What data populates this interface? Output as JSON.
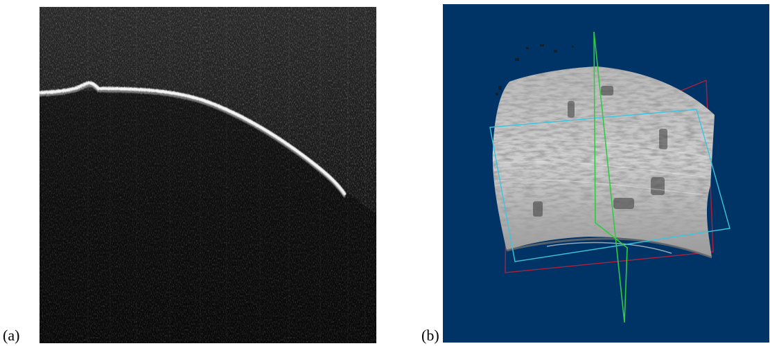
{
  "figure": {
    "panels": [
      {
        "label": "(a)",
        "kind": "grayscale-oct-cross-section"
      },
      {
        "label": "(b)",
        "kind": "3d-volume-render"
      }
    ],
    "colors": {
      "panel_a_background": "#050505",
      "panel_b_background": "#003366",
      "plane_green": "#2ecc40",
      "plane_cyan": "#39c6e0",
      "plane_red": "#b0203a"
    }
  }
}
